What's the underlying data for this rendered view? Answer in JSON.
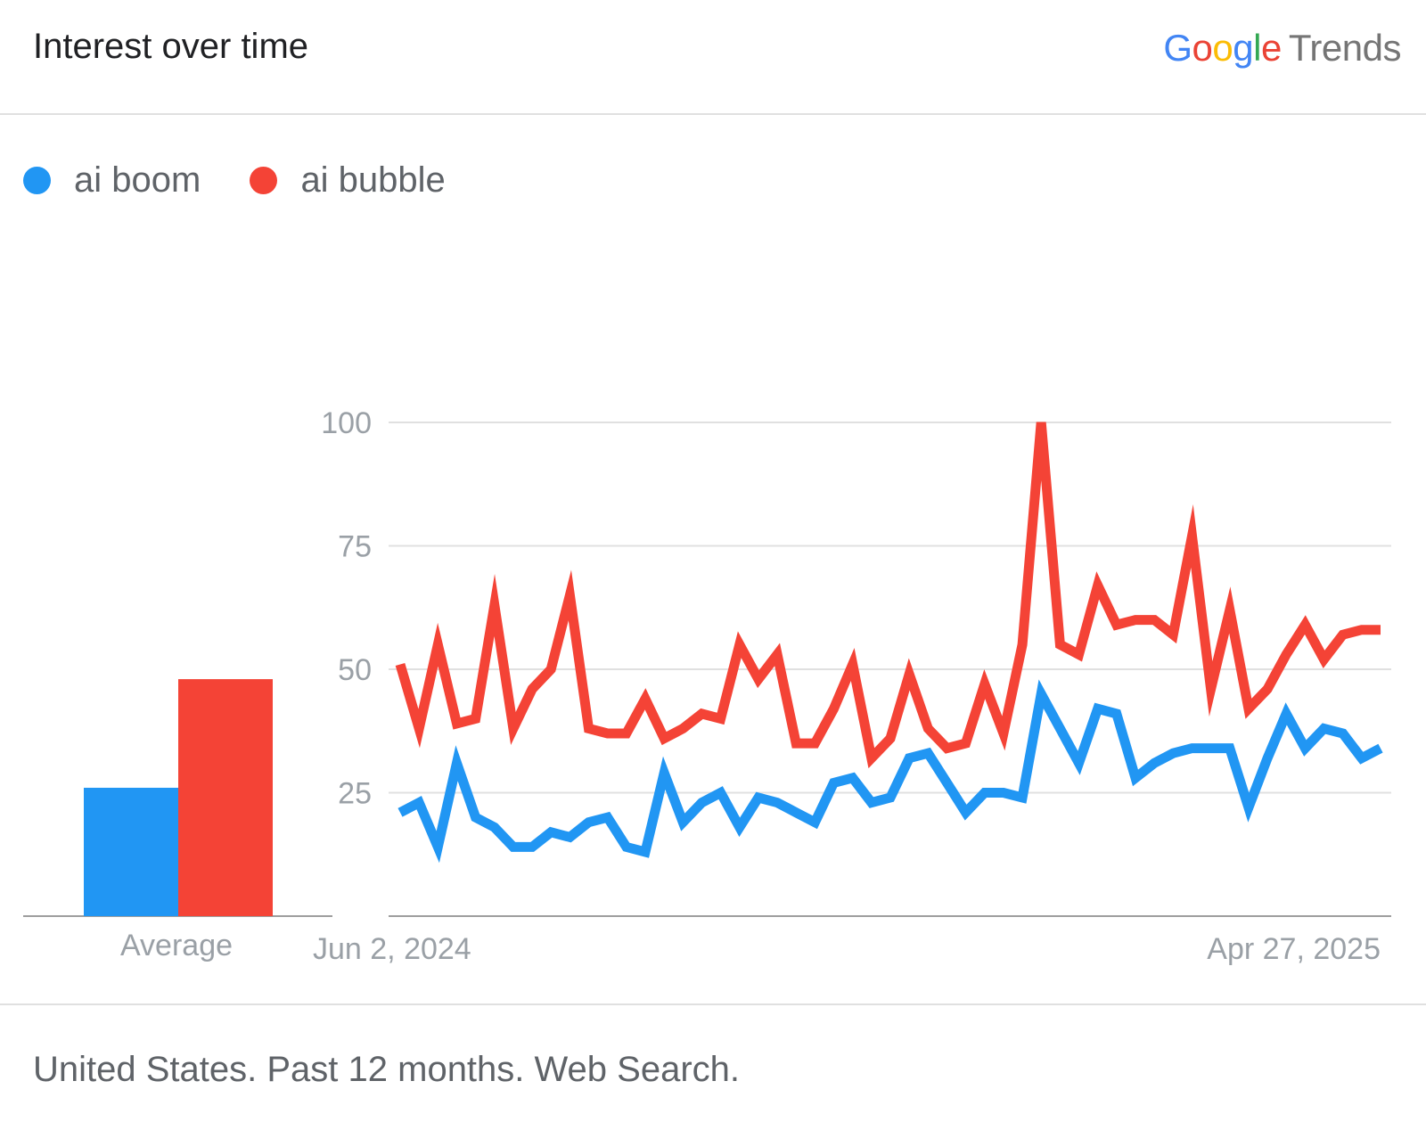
{
  "header": {
    "title": "Interest over time",
    "logo": {
      "google": [
        "G",
        "o",
        "o",
        "g",
        "l",
        "e"
      ],
      "trends": "Trends"
    }
  },
  "legend": [
    {
      "label": "ai boom",
      "color": "#2196f3"
    },
    {
      "label": "ai bubble",
      "color": "#f44336"
    }
  ],
  "chart_data": [
    {
      "type": "bar",
      "categories": [
        "Average"
      ],
      "series": [
        {
          "name": "ai boom",
          "values": [
            26
          ],
          "color": "#2196f3"
        },
        {
          "name": "ai bubble",
          "values": [
            48
          ],
          "color": "#f44336"
        }
      ],
      "ylim": [
        0,
        100
      ]
    },
    {
      "type": "line",
      "x_labels": [
        "Jun 2, 2024",
        "Apr 27, 2025"
      ],
      "x_start": "Jun 2, 2024",
      "x_end": "Apr 27, 2025",
      "yticks": [
        25,
        50,
        75,
        100
      ],
      "ylim": [
        0,
        100
      ],
      "grid": true,
      "series": [
        {
          "name": "ai boom",
          "color": "#2196f3",
          "values": [
            21,
            23,
            14,
            31,
            20,
            18,
            14,
            14,
            17,
            16,
            19,
            20,
            14,
            13,
            29,
            19,
            23,
            25,
            18,
            24,
            23,
            21,
            19,
            27,
            28,
            23,
            24,
            32,
            33,
            27,
            21,
            25,
            25,
            24,
            45,
            38,
            31,
            42,
            41,
            28,
            31,
            33,
            34,
            34,
            34,
            22,
            32,
            41,
            34,
            38,
            37,
            32,
            34
          ]
        },
        {
          "name": "ai bubble",
          "color": "#f44336",
          "values": [
            51,
            38,
            55,
            39,
            40,
            63,
            38,
            46,
            50,
            65,
            38,
            37,
            37,
            44,
            36,
            38,
            41,
            40,
            55,
            48,
            53,
            35,
            35,
            42,
            51,
            32,
            36,
            49,
            38,
            34,
            35,
            47,
            37,
            55,
            100,
            55,
            53,
            67,
            59,
            60,
            60,
            57,
            77,
            46,
            62,
            42,
            46,
            53,
            59,
            52,
            57,
            58,
            58
          ]
        }
      ]
    }
  ],
  "footer": {
    "text": "United States. Past 12 months. Web Search."
  }
}
